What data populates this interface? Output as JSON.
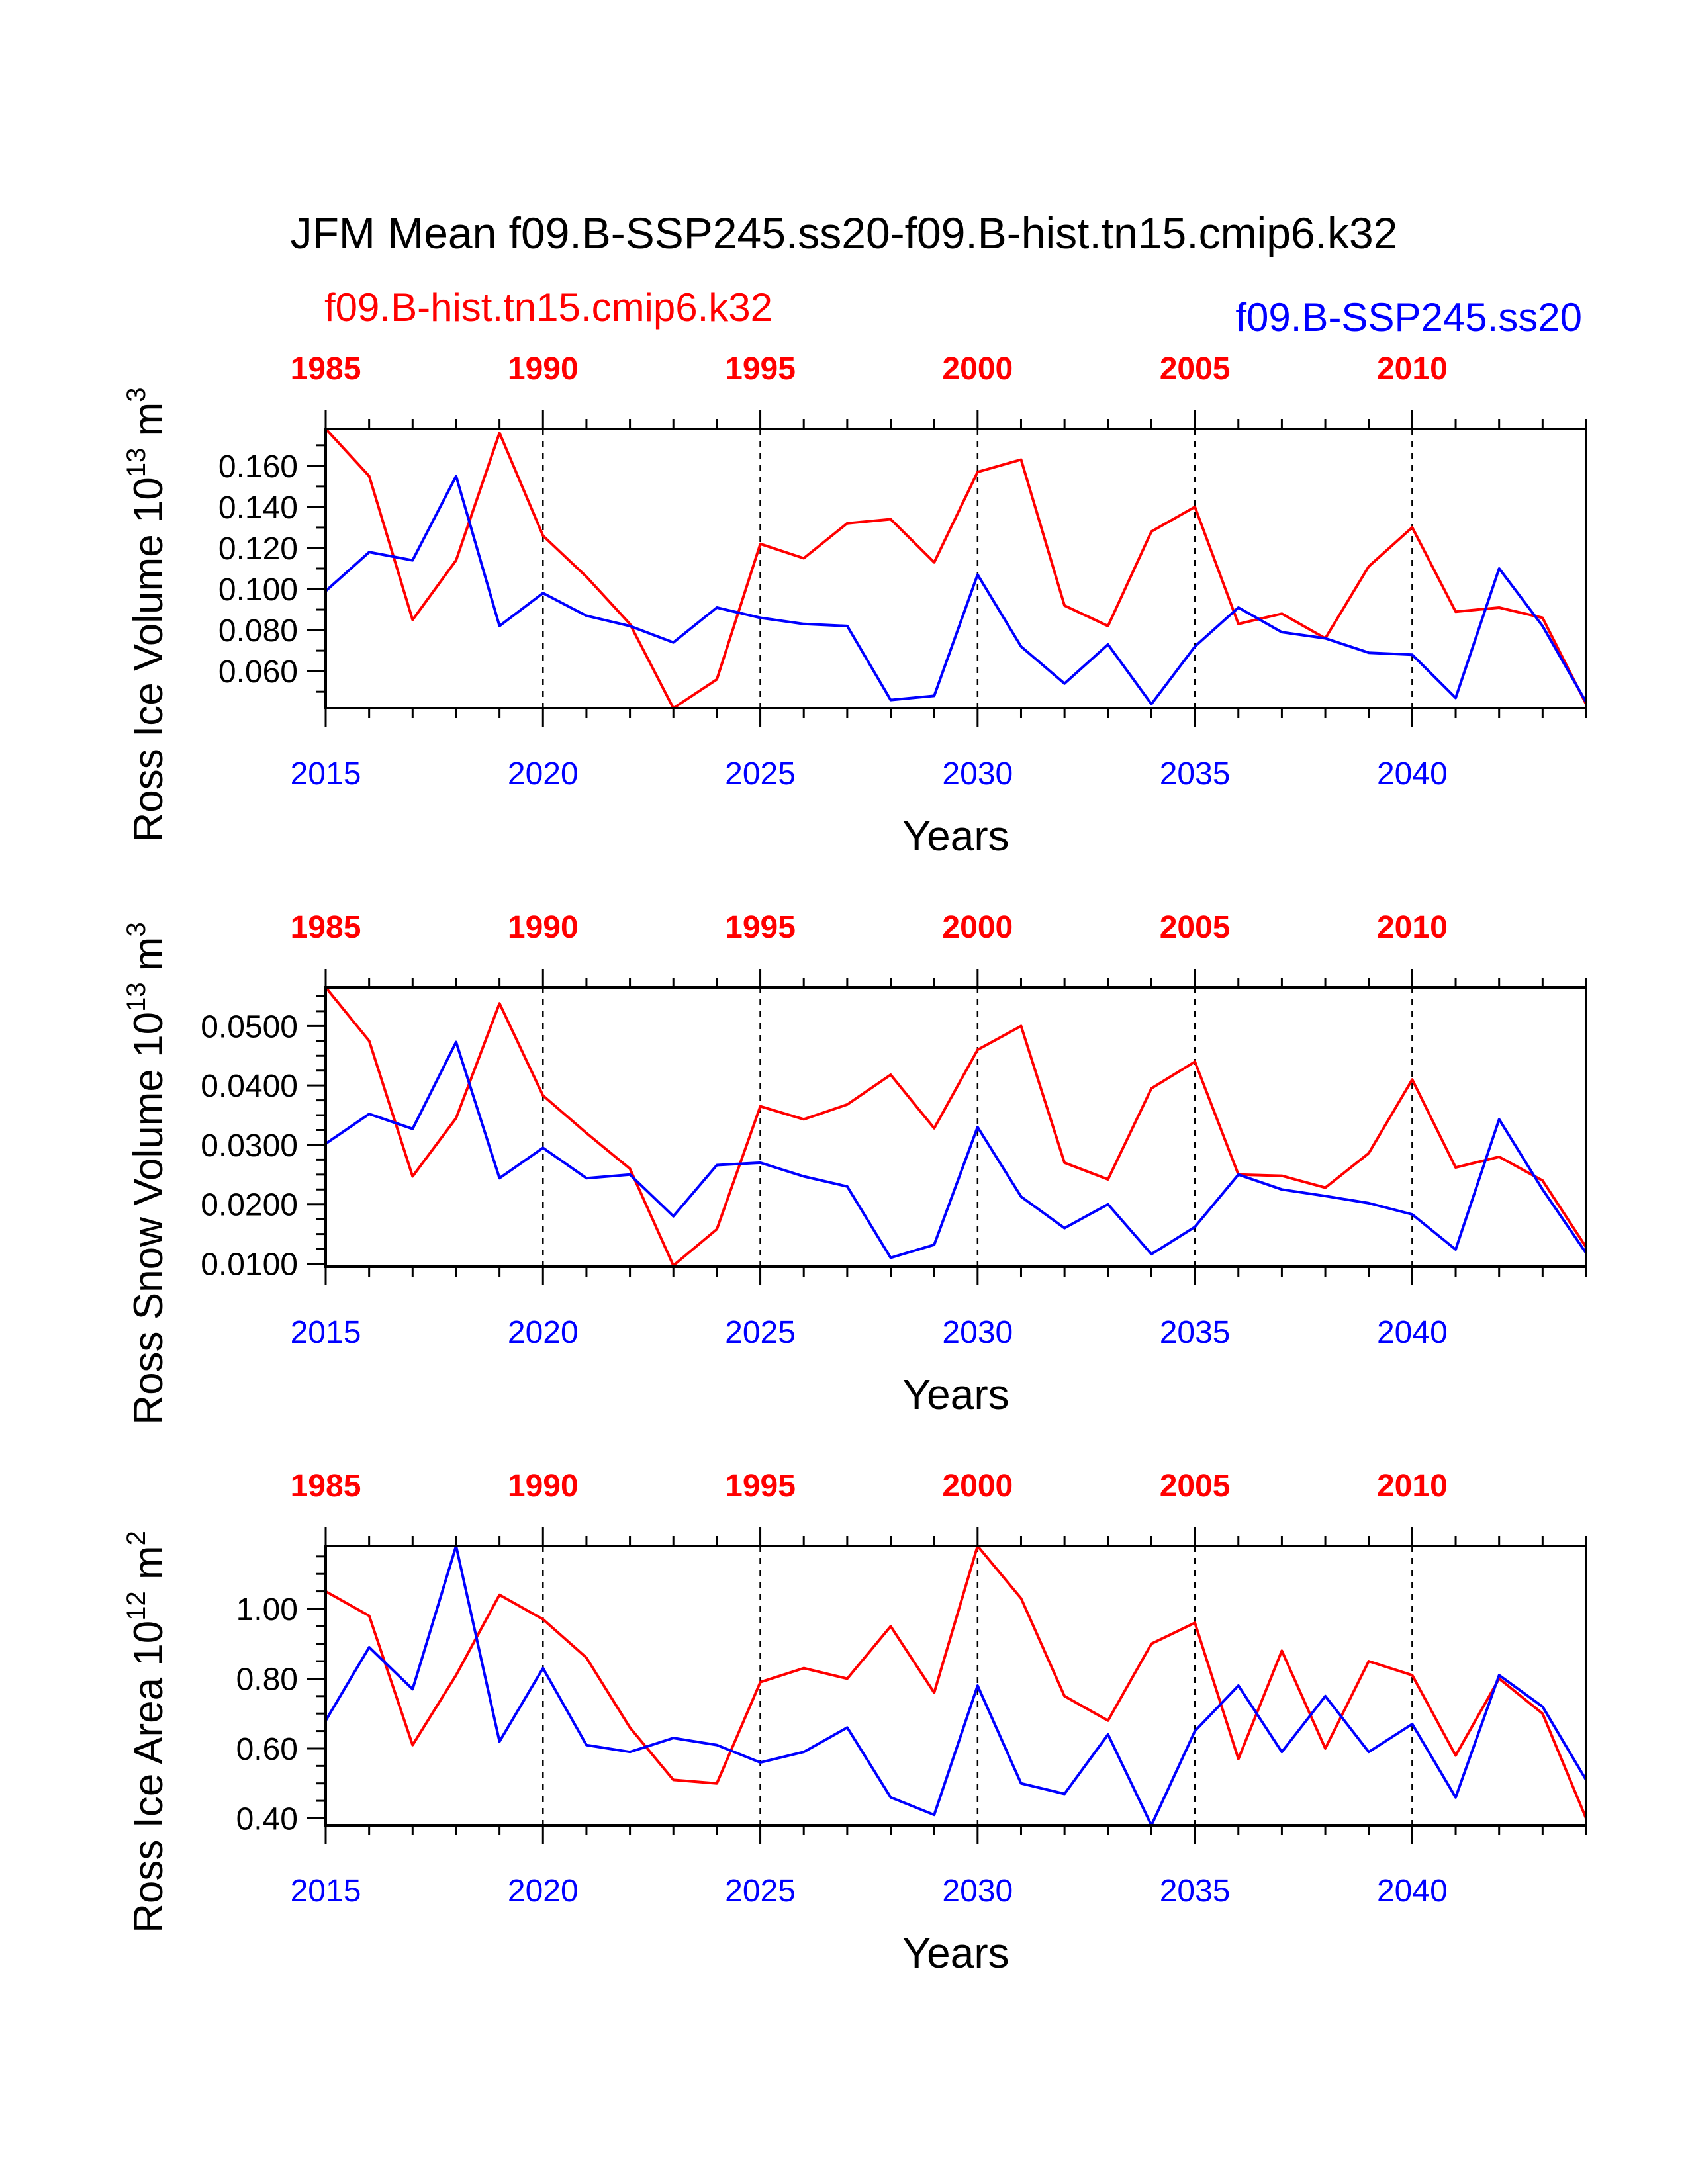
{
  "title": "JFM Mean f09.B-SSP245.ss20-f09.B-hist.tn15.cmip6.k32",
  "legend": {
    "hist": "f09.B-hist.tn15.cmip6.k32",
    "ssp": "f09.B-SSP245.ss20"
  },
  "colors": {
    "hist": "#ff0000",
    "ssp": "#0000ff",
    "axis": "#000000"
  },
  "chart_data": [
    {
      "type": "line",
      "ylabel": "Ross Ice Volume 10",
      "ylabel_exp": "13",
      "ylabel_unit": " m",
      "ylabel_unit_exp": "3",
      "xlabel": "Years",
      "ylim": [
        0.042,
        0.178
      ],
      "yticks": [
        0.06,
        0.08,
        0.1,
        0.12,
        0.14,
        0.16
      ],
      "ytick_labels": [
        "0.060",
        "0.080",
        "0.100",
        "0.120",
        "0.140",
        "0.160"
      ],
      "yminor": 0.01,
      "top_axis": {
        "range": [
          1985,
          2014
        ],
        "ticks": [
          1985,
          1990,
          1995,
          2000,
          2005,
          2010
        ],
        "labels": [
          "1985",
          "1990",
          "1995",
          "2000",
          "2005",
          "2010"
        ]
      },
      "bottom_axis": {
        "range": [
          2015,
          2044
        ],
        "ticks": [
          2015,
          2020,
          2025,
          2030,
          2035,
          2040
        ],
        "labels": [
          "2015",
          "2020",
          "2025",
          "2030",
          "2035",
          "2040"
        ]
      },
      "series": [
        {
          "name": "f09.B-hist.tn15.cmip6.k32",
          "axis": "top",
          "x_start": 1985,
          "values": [
            0.178,
            0.155,
            0.085,
            0.114,
            0.176,
            0.126,
            0.106,
            0.083,
            0.042,
            0.056,
            0.122,
            0.115,
            0.132,
            0.134,
            0.113,
            0.157,
            0.163,
            0.092,
            0.082,
            0.128,
            0.14,
            0.083,
            0.088,
            0.076,
            0.111,
            0.13,
            0.089,
            0.091,
            0.086,
            0.044
          ]
        },
        {
          "name": "f09.B-SSP245.ss20",
          "axis": "bottom",
          "x_start": 2015,
          "values": [
            0.099,
            0.118,
            0.114,
            0.155,
            0.082,
            0.098,
            0.087,
            0.082,
            0.074,
            0.091,
            0.086,
            0.083,
            0.082,
            0.046,
            0.048,
            0.107,
            0.072,
            0.054,
            0.073,
            0.044,
            0.072,
            0.091,
            0.079,
            0.076,
            0.069,
            0.068,
            0.047,
            0.11,
            0.082,
            0.045
          ]
        }
      ]
    },
    {
      "type": "line",
      "ylabel": "Ross Snow Volume 10",
      "ylabel_exp": "13",
      "ylabel_unit": " m",
      "ylabel_unit_exp": "3",
      "xlabel": "Years",
      "ylim": [
        0.0095,
        0.0565
      ],
      "yticks": [
        0.01,
        0.02,
        0.03,
        0.04,
        0.05
      ],
      "ytick_labels": [
        "0.0100",
        "0.0200",
        "0.0300",
        "0.0400",
        "0.0500"
      ],
      "yminor": 0.0025,
      "top_axis": {
        "range": [
          1985,
          2014
        ],
        "ticks": [
          1985,
          1990,
          1995,
          2000,
          2005,
          2010
        ],
        "labels": [
          "1985",
          "1990",
          "1995",
          "2000",
          "2005",
          "2010"
        ]
      },
      "bottom_axis": {
        "range": [
          2015,
          2044
        ],
        "ticks": [
          2015,
          2020,
          2025,
          2030,
          2035,
          2040
        ],
        "labels": [
          "2015",
          "2020",
          "2025",
          "2030",
          "2035",
          "2040"
        ]
      },
      "series": [
        {
          "name": "f09.B-hist.tn15.cmip6.k32",
          "axis": "top",
          "x_start": 1985,
          "values": [
            0.0565,
            0.0475,
            0.0247,
            0.0345,
            0.0538,
            0.0383,
            0.032,
            0.026,
            0.0097,
            0.0158,
            0.0365,
            0.0343,
            0.0368,
            0.0418,
            0.0328,
            0.046,
            0.05,
            0.027,
            0.0242,
            0.0395,
            0.044,
            0.025,
            0.0248,
            0.0228,
            0.0286,
            0.041,
            0.0262,
            0.028,
            0.024,
            0.0128
          ]
        },
        {
          "name": "f09.B-SSP245.ss20",
          "axis": "bottom",
          "x_start": 2015,
          "values": [
            0.0302,
            0.0352,
            0.0327,
            0.0473,
            0.0244,
            0.0295,
            0.0244,
            0.025,
            0.018,
            0.0266,
            0.027,
            0.0247,
            0.023,
            0.011,
            0.0132,
            0.033,
            0.0213,
            0.016,
            0.02,
            0.0116,
            0.0162,
            0.025,
            0.0225,
            0.0214,
            0.0202,
            0.0183,
            0.0124,
            0.0343,
            0.0225,
            0.0118
          ]
        }
      ]
    },
    {
      "type": "line",
      "ylabel": "Ross Ice Area 10",
      "ylabel_exp": "12",
      "ylabel_unit": " m",
      "ylabel_unit_exp": "2",
      "xlabel": "Years",
      "ylim": [
        0.38,
        1.18
      ],
      "yticks": [
        0.4,
        0.6,
        0.8,
        1.0
      ],
      "ytick_labels": [
        "0.40",
        "0.60",
        "0.80",
        "1.00"
      ],
      "yminor": 0.05,
      "top_axis": {
        "range": [
          1985,
          2014
        ],
        "ticks": [
          1985,
          1990,
          1995,
          2000,
          2005,
          2010
        ],
        "labels": [
          "1985",
          "1990",
          "1995",
          "2000",
          "2005",
          "2010"
        ]
      },
      "bottom_axis": {
        "range": [
          2015,
          2044
        ],
        "ticks": [
          2015,
          2020,
          2025,
          2030,
          2035,
          2040
        ],
        "labels": [
          "2015",
          "2020",
          "2025",
          "2030",
          "2035",
          "2040"
        ]
      },
      "series": [
        {
          "name": "f09.B-hist.tn15.cmip6.k32",
          "axis": "top",
          "x_start": 1985,
          "values": [
            1.05,
            0.98,
            0.61,
            0.81,
            1.04,
            0.97,
            0.86,
            0.66,
            0.51,
            0.5,
            0.79,
            0.83,
            0.8,
            0.95,
            0.76,
            1.18,
            1.03,
            0.75,
            0.68,
            0.9,
            0.96,
            0.57,
            0.88,
            0.6,
            0.85,
            0.81,
            0.58,
            0.8,
            0.7,
            0.4
          ]
        },
        {
          "name": "f09.B-SSP245.ss20",
          "axis": "bottom",
          "x_start": 2015,
          "values": [
            0.68,
            0.89,
            0.77,
            1.18,
            0.62,
            0.83,
            0.61,
            0.59,
            0.63,
            0.61,
            0.56,
            0.59,
            0.66,
            0.46,
            0.41,
            0.78,
            0.5,
            0.47,
            0.64,
            0.38,
            0.65,
            0.78,
            0.59,
            0.75,
            0.59,
            0.67,
            0.46,
            0.81,
            0.72,
            0.51
          ]
        }
      ]
    }
  ]
}
